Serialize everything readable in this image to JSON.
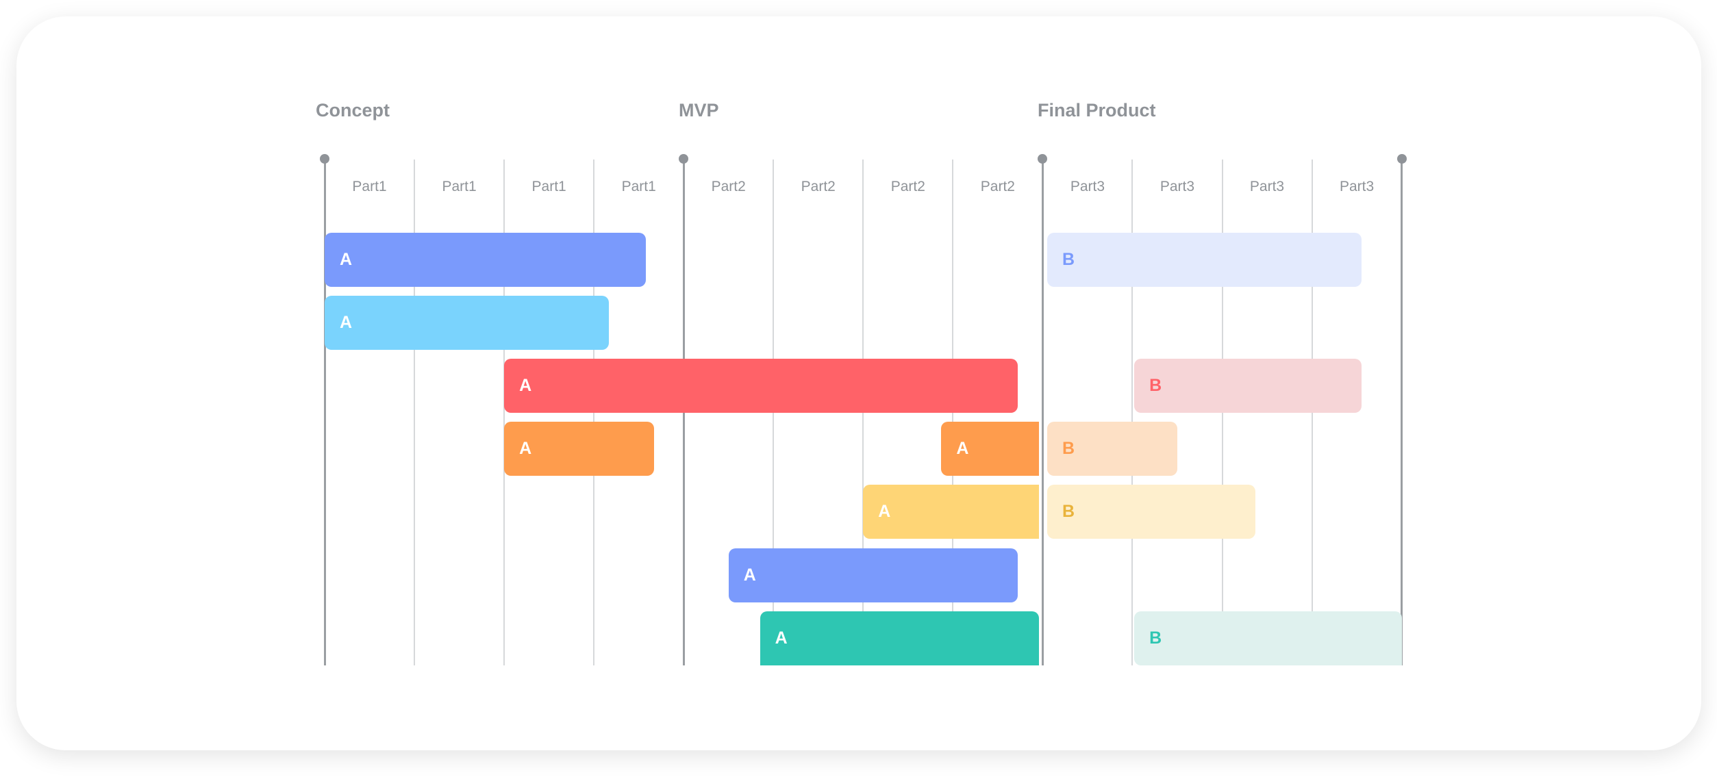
{
  "chart_data": {
    "type": "gantt",
    "milestones": [
      "Concept",
      "MVP",
      "Final Product"
    ],
    "columns": [
      "Part1",
      "Part1",
      "Part1",
      "Part1",
      "Part2",
      "Part2",
      "Part2",
      "Part2",
      "Part3",
      "Part3",
      "Part3",
      "Part3"
    ],
    "bars": [
      {
        "label": "A",
        "start": 0,
        "end": 3.58,
        "color": "#7a9afc",
        "text_color": "#ffffff"
      },
      {
        "label": "B",
        "start": 8.05,
        "end": 11.55,
        "color": "#e3eafd",
        "text_color": "#7a9afc"
      },
      {
        "label": "A",
        "start": 0,
        "end": 3.17,
        "color": "#7ad3fd",
        "text_color": "#ffffff"
      },
      {
        "label": "A",
        "start": 2,
        "end": 7.72,
        "color": "#ff6268",
        "text_color": "#ffffff"
      },
      {
        "label": "B",
        "start": 9.02,
        "end": 11.55,
        "color": "#f6d5d7",
        "text_color": "#ff6268"
      },
      {
        "label": "A",
        "start": 2,
        "end": 3.67,
        "color": "#fe9c4d",
        "text_color": "#ffffff"
      },
      {
        "label": "A",
        "start": 6.87,
        "end": 7.96,
        "color": "#fe9c4d",
        "text_color": "#ffffff"
      },
      {
        "label": "B",
        "start": 8.05,
        "end": 9.5,
        "color": "#fde0c5",
        "text_color": "#fe9c4d"
      },
      {
        "label": "A",
        "start": 6,
        "end": 7.96,
        "color": "#fed576",
        "text_color": "#ffffff"
      },
      {
        "label": "B",
        "start": 8.05,
        "end": 10.37,
        "color": "#feefcd",
        "text_color": "#e9b33b"
      },
      {
        "label": "A",
        "start": 4.5,
        "end": 7.72,
        "color": "#7a9afc",
        "text_color": "#ffffff"
      },
      {
        "label": "A",
        "start": 4.85,
        "end": 7.96,
        "color": "#2ec6b2",
        "text_color": "#ffffff"
      },
      {
        "label": "B",
        "start": 9.02,
        "end": 12,
        "color": "#dff1ee",
        "text_color": "#2ec6b2"
      }
    ]
  }
}
